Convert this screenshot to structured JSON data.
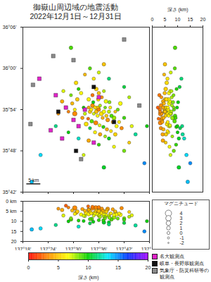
{
  "chart_data": {
    "type": "scatter",
    "title": "御嶽山周辺域の地震活動",
    "subtitle": "2022年12月1日～12月31日",
    "lon": [
      137.56,
      137.565,
      137.57,
      137.575,
      137.58,
      137.585,
      137.59,
      137.595,
      137.6,
      137.605,
      137.61,
      137.615,
      137.62,
      137.625,
      137.63,
      137.635,
      137.64,
      137.645,
      137.65,
      137.655,
      137.66,
      137.665,
      137.67,
      137.558,
      137.572,
      137.588,
      137.603,
      137.618,
      137.632,
      137.648,
      137.578,
      137.598,
      137.612,
      137.628,
      137.642,
      137.6,
      137.62,
      137.59,
      137.575,
      137.56,
      137.545,
      137.54,
      137.535,
      137.55,
      137.565,
      137.585,
      137.605,
      137.625,
      137.64,
      137.665,
      137.68,
      137.69,
      137.675,
      137.685,
      137.7,
      137.47,
      137.48,
      137.495,
      137.505,
      137.515,
      137.49,
      137.46,
      137.455,
      137.52,
      137.53,
      137.51,
      137.44,
      137.58,
      137.6,
      137.62,
      137.565,
      137.545,
      137.64,
      137.49,
      137.7,
      137.72,
      137.73,
      137.745,
      137.72,
      137.7,
      137.66,
      137.6,
      137.56,
      137.52,
      137.48,
      137.43,
      137.37,
      137.335,
      137.79,
      137.78,
      137.62,
      137.54,
      137.596,
      137.505
    ],
    "lat": [
      35.905,
      35.895,
      35.9,
      35.91,
      35.89,
      35.905,
      35.895,
      35.885,
      35.9,
      35.91,
      35.89,
      35.88,
      35.895,
      35.905,
      35.885,
      35.875,
      35.895,
      35.905,
      35.885,
      35.87,
      35.88,
      35.895,
      35.86,
      35.878,
      35.872,
      35.868,
      35.862,
      35.858,
      35.852,
      35.848,
      35.918,
      35.925,
      35.93,
      35.92,
      35.918,
      35.94,
      35.945,
      35.95,
      35.935,
      35.925,
      35.89,
      35.905,
      35.88,
      35.865,
      35.855,
      35.845,
      35.84,
      35.835,
      35.83,
      35.84,
      35.87,
      35.855,
      35.9,
      35.915,
      35.88,
      35.905,
      35.895,
      35.915,
      35.9,
      35.925,
      35.935,
      35.945,
      35.92,
      35.95,
      35.94,
      35.965,
      35.89,
      35.975,
      35.99,
      36.01,
      36.0,
      35.985,
      35.975,
      36.05,
      35.955,
      35.93,
      35.86,
      35.84,
      35.82,
      35.8,
      35.81,
      35.815,
      35.825,
      35.83,
      35.845,
      35.86,
      35.79,
      35.725,
      35.86,
      35.77,
      35.76,
      35.79,
      35.903,
      35.89
    ],
    "depth": [
      4.2,
      5.1,
      6.0,
      3.5,
      7.2,
      5.5,
      4.8,
      6.5,
      3.0,
      7.8,
      5.8,
      4.5,
      6.8,
      8.5,
      5.2,
      3.8,
      7.5,
      6.2,
      9.0,
      4.0,
      8.0,
      5.0,
      6.6,
      2.5,
      8.8,
      3.2,
      7.0,
      9.5,
      4.4,
      6.0,
      10.2,
      5.6,
      3.6,
      6.9,
      8.2,
      4.9,
      7.6,
      5.3,
      2.8,
      6.4,
      7.4,
      9.8,
      3.9,
      5.9,
      11.0,
      6.3,
      4.1,
      7.9,
      10.5,
      5.4,
      6.1,
      3.4,
      8.6,
      6.7,
      9.2,
      2.2,
      3.1,
      4.6,
      6.3,
      5.1,
      8.4,
      7.1,
      4.3,
      9.6,
      6.6,
      5.7,
      3.7,
      6.0,
      7.3,
      5.0,
      8.9,
      4.7,
      11.5,
      9.0,
      10.8,
      7.7,
      7.0,
      12.0,
      5.3,
      8.5,
      6.8,
      9.4,
      4.2,
      12.6,
      10.0,
      11.8,
      13.5,
      14.0,
      9.9,
      15.0,
      10.5,
      7.2,
      5.0,
      3.3
    ],
    "magnitude": [
      0.3,
      0.8,
      0.5,
      1.2,
      0.1,
      0.6,
      1.0,
      0.4,
      0.7,
      0.2,
      1.5,
      0.3,
      0.9,
      0.0,
      0.5,
      1.1,
      0.6,
      0.2,
      0.8,
      0.4,
      1.3,
      0.1,
      0.7,
      0.2,
      0.9,
      1.6,
      0.3,
      0.5,
      0.6,
      0.2,
      0.4,
      0.8,
      0.3,
      1.0,
      0.5,
      0.7,
      0.2,
      1.1,
      0.6,
      0.9,
      0.4,
      0.2,
      0.6,
      1.4,
      0.3,
      0.5,
      0.8,
      0.1,
      0.6,
      0.9,
      0.4,
      0.7,
      0.3,
      1.2,
      0.5,
      0.4,
      0.1,
      0.6,
      0.3,
      0.9,
      0.2,
      0.5,
      0.8,
      0.3,
      0.7,
      1.0,
      0.2,
      0.6,
      0.4,
      0.8,
      0.5,
      0.3,
      0.6,
      0.9,
      0.4,
      0.3,
      0.5,
      0.7,
      0.2,
      0.6,
      0.3,
      0.4,
      0.9,
      0.6,
      0.2,
      0.5,
      0.7,
      0.8,
      0.4,
      0.6,
      1.0,
      0.3,
      2.2,
      1.9
    ],
    "xlim": [
      137.3,
      137.8
    ],
    "xticks": [
      {
        "value": 137.3,
        "label": "137°18'"
      },
      {
        "value": 137.4,
        "label": "137°24'"
      },
      {
        "value": 137.5,
        "label": "137°30'"
      },
      {
        "value": 137.6,
        "label": "137°36'"
      },
      {
        "value": 137.7,
        "label": "137°42'"
      },
      {
        "value": 137.8,
        "label": "137°48'"
      }
    ],
    "ylim": [
      35.7,
      36.1
    ],
    "yticks": [
      {
        "value": 35.7,
        "label": "35°42'"
      },
      {
        "value": 35.8,
        "label": "35°48'"
      },
      {
        "value": 35.9,
        "label": "35°54'"
      },
      {
        "value": 36.0,
        "label": "36°00'"
      },
      {
        "value": 36.1,
        "label": "36°06'"
      }
    ],
    "side_panel": {
      "xlabel": "深さ (km)",
      "xlim": [
        0,
        20
      ],
      "xticks": [
        0,
        5,
        10,
        15,
        20
      ]
    },
    "section_panel": {
      "ylim": [
        0,
        20
      ],
      "yticks": [
        {
          "value": 0,
          "label": "0 km"
        },
        {
          "value": 5,
          "label": "5 km"
        },
        10,
        15,
        20
      ]
    },
    "scale_bar": {
      "value": 5,
      "label": "5 km"
    },
    "magnitude_legend": {
      "title": "マグニチュード",
      "values": [
        4,
        3,
        2,
        1,
        0,
        -1,
        -2
      ]
    },
    "stations": [
      {
        "name": "名大観測点",
        "color": "#e022c8",
        "marker": "square",
        "lon": [
          137.365,
          137.43,
          137.47,
          137.5,
          137.52,
          137.545,
          137.58,
          137.6,
          137.455,
          137.41
        ],
        "lat": [
          35.975,
          35.935,
          35.905,
          35.875,
          35.86,
          35.9,
          35.82,
          35.93,
          35.83,
          35.85
        ]
      },
      {
        "name": "岐阜・長野県観測点",
        "color": "#111111",
        "marker": "square",
        "lon": [
          137.58,
          137.66,
          137.44,
          137.51
        ],
        "lat": [
          35.955,
          35.87,
          35.895,
          35.8
        ]
      },
      {
        "name": "気象庁・防災科研等の観測点",
        "color": "#8a8a8a",
        "marker": "square",
        "lon": [
          137.34,
          137.42,
          137.5,
          137.76,
          137.33,
          137.53,
          137.7
        ],
        "lat": [
          35.96,
          36.03,
          36.02,
          35.91,
          35.865,
          35.78,
          36.07
        ]
      }
    ],
    "colorbar": {
      "label": "深さ (km)",
      "range": [
        0,
        20
      ],
      "ticks": [
        0,
        5,
        10,
        15,
        20
      ]
    }
  }
}
